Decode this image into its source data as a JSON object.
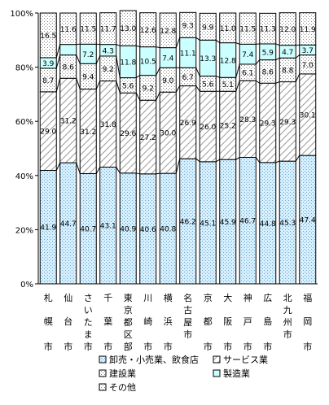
{
  "chart_data": {
    "type": "bar",
    "stacked": true,
    "percent": true,
    "categories": [
      "札幌市",
      "仙台市",
      "さいたま市",
      "千葉市",
      "東京都区部",
      "川崎市",
      "横浜市",
      "名古屋市",
      "京都市",
      "大阪市",
      "神戸市",
      "広島市",
      "北九州市",
      "福岡市"
    ],
    "ylim": [
      0,
      100
    ],
    "yticks": [
      "0%",
      "20%",
      "40%",
      "60%",
      "80%",
      "100%"
    ],
    "grid": false,
    "legend_position": "bottom",
    "series": [
      {
        "name": "卸売・小売業、飲食店",
        "color": "#cceeff",
        "pattern": "dots",
        "values": [
          41.9,
          44.7,
          40.7,
          43.1,
          40.9,
          40.6,
          40.8,
          46.2,
          45.1,
          45.9,
          46.7,
          44.8,
          45.3,
          47.4
        ]
      },
      {
        "name": "サービス業",
        "color": "#ffffff",
        "pattern": "diagonal",
        "values": [
          29.0,
          31.2,
          31.2,
          31.8,
          29.6,
          27.2,
          30.0,
          26.9,
          26.0,
          25.2,
          28.3,
          29.3,
          29.3,
          30.1
        ]
      },
      {
        "name": "建設業",
        "color": "#ffffff",
        "pattern": "dots",
        "values": [
          8.7,
          8.6,
          9.4,
          9.2,
          5.6,
          9.2,
          9.0,
          6.7,
          5.6,
          5.1,
          6.1,
          8.6,
          8.8,
          7.0
        ]
      },
      {
        "name": "製造業",
        "color": "#ccffff",
        "pattern": "solid",
        "values": [
          3.9,
          3.9,
          7.2,
          4.3,
          11.8,
          10.5,
          7.4,
          11.1,
          13.3,
          12.8,
          7.4,
          5.9,
          4.7,
          3.7
        ]
      },
      {
        "name": "その他",
        "color": "#ffffff",
        "pattern": "dots",
        "values": [
          16.5,
          11.6,
          11.5,
          11.7,
          13.0,
          12.6,
          12.8,
          9.3,
          9.9,
          11.0,
          11.5,
          11.3,
          12.0,
          11.9
        ]
      }
    ],
    "value_labels": [
      [
        "41.9",
        "44.7",
        "40.7",
        "43.1",
        "40.9",
        "40.6",
        "40.8",
        "46.2",
        "45.1",
        "45.9",
        "46.7",
        "44.8",
        "45.3",
        "47.4"
      ],
      [
        "29.0",
        "31.2",
        "31.2",
        "31.8",
        "29.6",
        "27.2",
        "30.0",
        "26.9",
        "26.0",
        "25.2",
        "28.3",
        "29.3",
        "29.3",
        "30.1"
      ],
      [
        "8.7",
        "8.6",
        "9.4",
        "9.2",
        "5.6",
        "9.2",
        "9.0",
        "6.7",
        "5.6",
        "5.1",
        "6.1",
        "8.6",
        "8.8",
        "7.0"
      ],
      [
        "3.9",
        "",
        "7.2",
        "4.3",
        "11.8",
        "10.5",
        "7.4",
        "11.1",
        "13.3",
        "12.8",
        "7.4",
        "5.9",
        "4.7",
        "3.7"
      ],
      [
        "16.5",
        "11.6",
        "11.5",
        "11.7",
        "13.0",
        "12.6",
        "12.8",
        "9.3",
        "9.9",
        "11.0",
        "11.5",
        "11.3",
        "12.0",
        "11.9"
      ]
    ]
  }
}
